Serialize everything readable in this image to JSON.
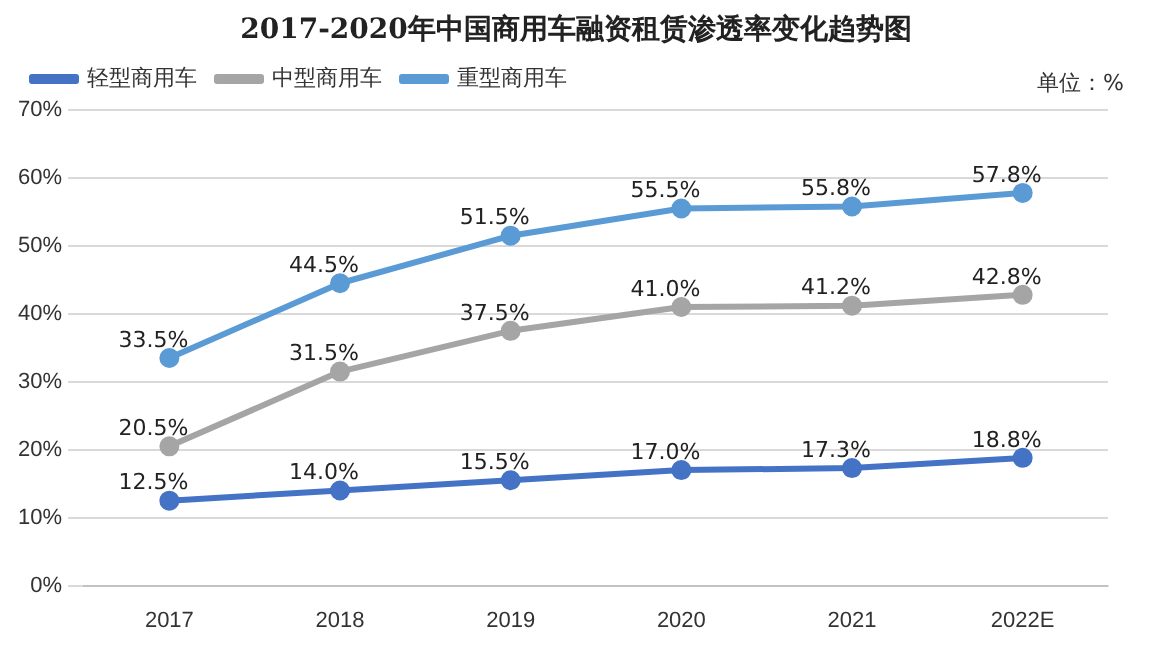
{
  "chart_data": {
    "type": "line",
    "title": "2017-2020年中国商用车融资租赁渗透率变化趋势图",
    "annotations": [
      "单位：%"
    ],
    "categories": [
      "2017",
      "2018",
      "2019",
      "2020",
      "2021",
      "2022E"
    ],
    "series": [
      {
        "name": "轻型商用车",
        "color": "#4472c4",
        "values": [
          12.5,
          14.0,
          15.5,
          17.0,
          17.3,
          18.8
        ],
        "value_labels": [
          "12.5%",
          "14.0%",
          "15.5%",
          "17.0%",
          "17.3%",
          "18.8%"
        ]
      },
      {
        "name": "中型商用车",
        "color": "#a5a5a5",
        "values": [
          20.5,
          31.5,
          37.5,
          41.0,
          41.2,
          42.8
        ],
        "value_labels": [
          "20.5%",
          "31.5%",
          "37.5%",
          "41.0%",
          "41.2%",
          "42.8%"
        ]
      },
      {
        "name": "重型商用车",
        "color": "#5b9bd5",
        "values": [
          33.5,
          44.5,
          51.5,
          55.5,
          55.8,
          57.8
        ],
        "value_labels": [
          "33.5%",
          "44.5%",
          "51.5%",
          "55.5%",
          "55.8%",
          "57.8%"
        ]
      }
    ],
    "ylim": [
      0,
      70
    ],
    "yticks": [
      {
        "value": 0,
        "label": "0%"
      },
      {
        "value": 10,
        "label": "10%"
      },
      {
        "value": 20,
        "label": "20%"
      },
      {
        "value": 30,
        "label": "30%"
      },
      {
        "value": 40,
        "label": "40%"
      },
      {
        "value": 50,
        "label": "50%"
      },
      {
        "value": 60,
        "label": "60%"
      },
      {
        "value": 70,
        "label": "70%"
      }
    ],
    "grid": "y",
    "legend": "top",
    "marker": "circle",
    "line_style": "solid"
  }
}
